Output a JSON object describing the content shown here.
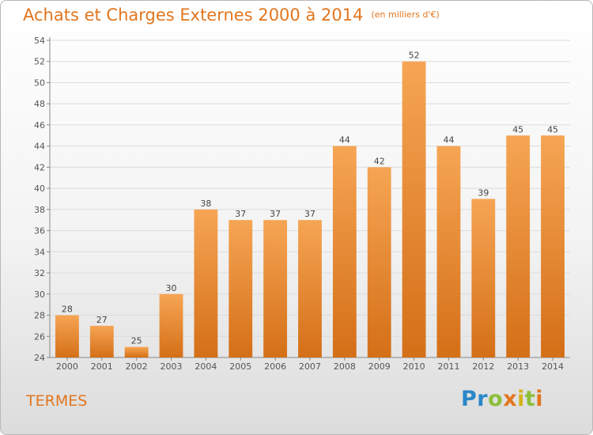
{
  "title": "Achats et Charges Externes 2000 à 2014",
  "subtitle": "(en milliers d'€)",
  "commune": "TERMES",
  "logo": {
    "text": "Proxiti",
    "letters": [
      {
        "ch": "P",
        "color": "#2a87c8"
      },
      {
        "ch": "r",
        "color": "#2a87c8"
      },
      {
        "ch": "o",
        "color": "#8bbf3a"
      },
      {
        "ch": "x",
        "color": "#e2761e"
      },
      {
        "ch": "i",
        "color": "#d4b21c"
      },
      {
        "ch": "t",
        "color": "#8bbf3a"
      },
      {
        "ch": "i",
        "color": "#e2761e"
      }
    ]
  },
  "colors": {
    "accent": "#e2761e",
    "bar_top": "#f6a554",
    "bar_bottom": "#d46f17",
    "grid": "#dcdcdc",
    "axis_text": "#555555"
  },
  "chart_data": {
    "type": "bar",
    "categories": [
      "2000",
      "2001",
      "2002",
      "2003",
      "2004",
      "2005",
      "2006",
      "2007",
      "2008",
      "2009",
      "2010",
      "2011",
      "2012",
      "2013",
      "2014"
    ],
    "values": [
      28,
      27,
      25,
      30,
      38,
      37,
      37,
      37,
      44,
      42,
      52,
      44,
      39,
      45,
      45
    ],
    "data_labels": [
      "28",
      "27",
      "25",
      "30",
      "38",
      "37",
      "37",
      "37",
      "44",
      "42",
      "52",
      "44",
      "39",
      "45",
      "45"
    ],
    "ylim": [
      24,
      54
    ],
    "yticks": [
      24,
      26,
      28,
      30,
      32,
      34,
      36,
      38,
      40,
      42,
      44,
      46,
      48,
      50,
      52,
      54
    ],
    "grid": true,
    "xlabel": "",
    "ylabel": ""
  }
}
